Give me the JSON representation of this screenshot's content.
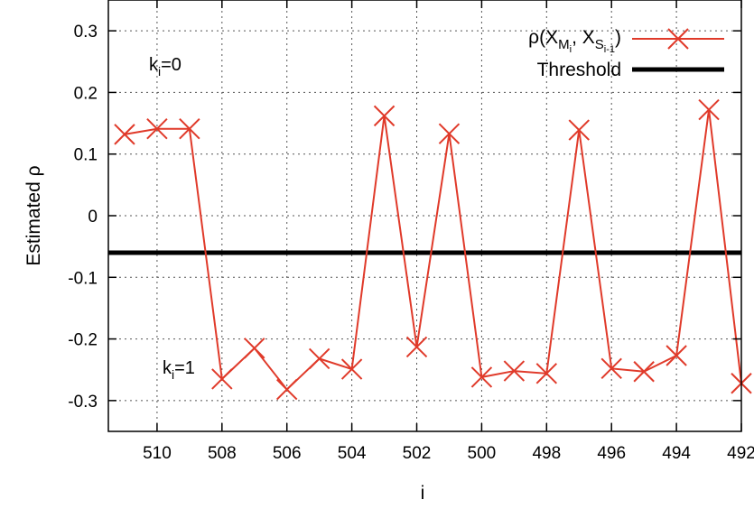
{
  "chart_data": {
    "type": "line",
    "xlabel": "i",
    "ylabel": "Estimated ρ",
    "xlim": [
      511.5,
      492
    ],
    "ylim": [
      -0.35,
      0.35
    ],
    "x_reversed": true,
    "grid": true,
    "legend_position": "top-right",
    "x_ticks": [
      510,
      508,
      506,
      504,
      502,
      500,
      498,
      496,
      494,
      492
    ],
    "x_tick_labels": [
      "510",
      "508",
      "506",
      "504",
      "502",
      "500",
      "498",
      "496",
      "494",
      "492"
    ],
    "y_ticks": [
      0.3,
      0.2,
      0.1,
      0,
      -0.1,
      -0.2,
      -0.3
    ],
    "y_tick_labels": [
      "0.3",
      "0.2",
      "0.1",
      "0",
      "-0.1",
      "-0.2",
      "-0.3"
    ],
    "series": [
      {
        "name": "ρ(X_{M_i}, X_{S_{i-1}})",
        "color": "#e03a2a",
        "marker": "x",
        "x": [
          511,
          510,
          509,
          508,
          507,
          506,
          505,
          504,
          503,
          502,
          501,
          500,
          499,
          498,
          497,
          496,
          495,
          494,
          493,
          492
        ],
        "y": [
          0.132,
          0.141,
          0.141,
          -0.265,
          -0.215,
          -0.282,
          -0.232,
          -0.249,
          0.162,
          -0.213,
          0.133,
          -0.262,
          -0.252,
          -0.256,
          0.139,
          -0.248,
          -0.253,
          -0.227,
          0.172,
          -0.272
        ]
      }
    ],
    "threshold": {
      "name": "Threshold",
      "value": -0.06,
      "color": "#000000"
    },
    "annotations": [
      {
        "main": "k",
        "sub": "i",
        "rest": "=0"
      },
      {
        "main": "k",
        "sub": "i",
        "rest": "=1"
      }
    ],
    "legend": {
      "series_label": {
        "main": "ρ(X",
        "sub1": "M",
        "subsub1": "i",
        "mid": ", X",
        "sub2": "S",
        "subsub2": "i-1",
        "end": ")"
      },
      "threshold_label": "Threshold"
    }
  }
}
